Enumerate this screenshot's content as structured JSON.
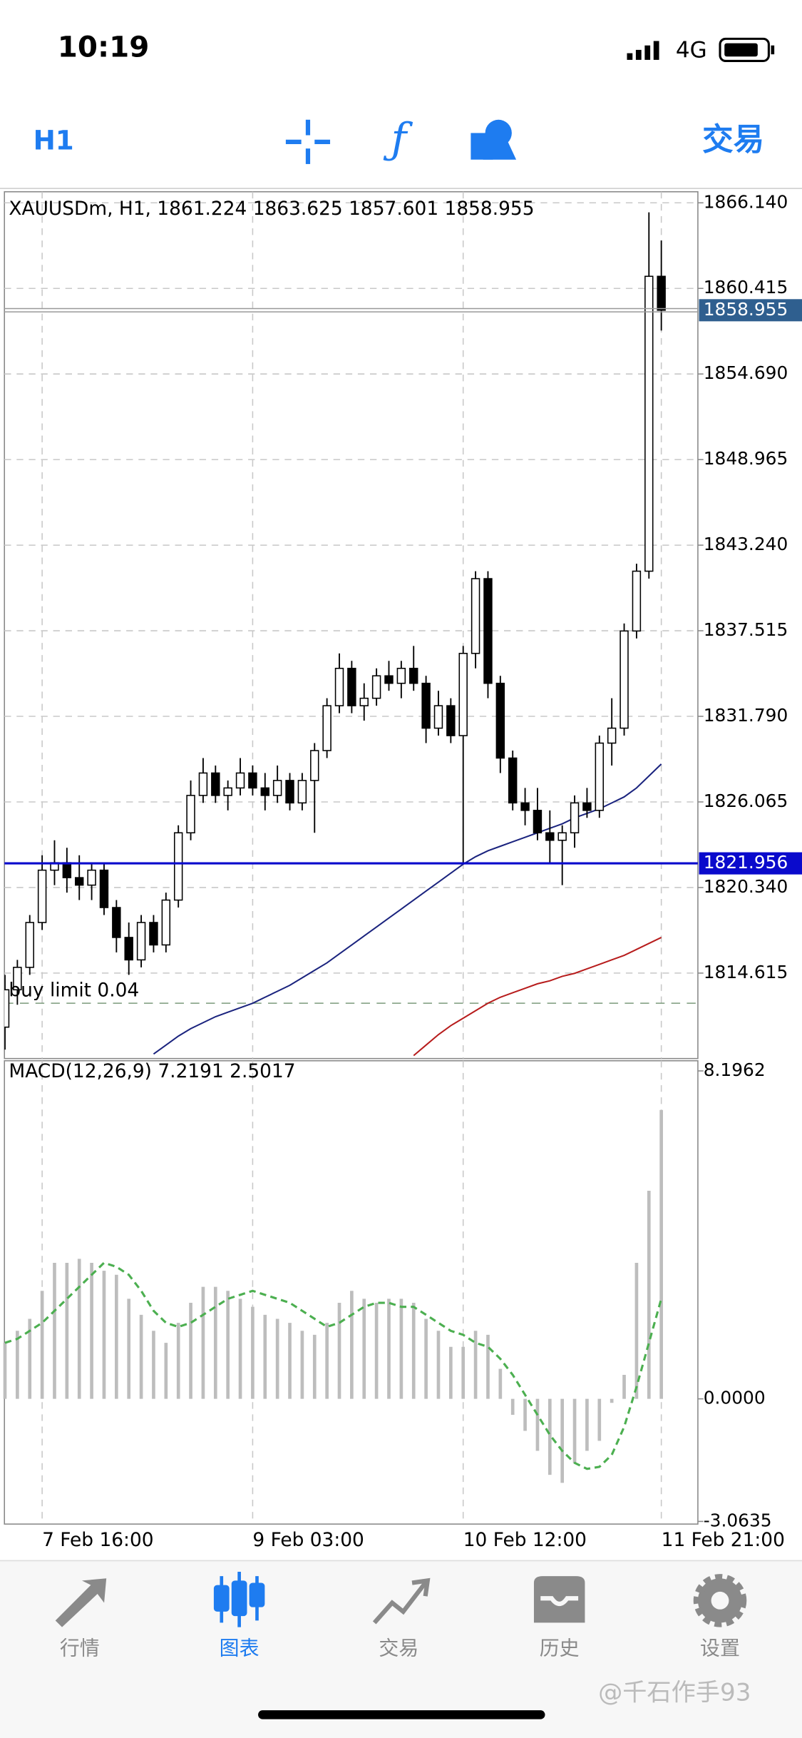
{
  "status_bar": {
    "time": "10:19",
    "network": "4G"
  },
  "toolbar": {
    "period": "H1",
    "trade": "交易"
  },
  "chart_data": [
    {
      "type": "candlestick",
      "title": "XAUUSDm, H1, 1861.224 1863.625 1857.601 1858.955",
      "categories": [
        null,
        null,
        null,
        "7 Feb 16:00",
        null,
        null,
        null,
        null,
        null,
        null,
        null,
        null,
        null,
        null,
        null,
        null,
        null,
        null,
        null,
        null,
        "9 Feb 03:00",
        null,
        null,
        null,
        null,
        null,
        null,
        null,
        null,
        null,
        null,
        null,
        null,
        null,
        null,
        null,
        null,
        "10 Feb 12:00",
        null,
        null,
        null,
        null,
        null,
        null,
        null,
        null,
        null,
        null,
        null,
        null,
        null,
        null,
        null,
        "11 Feb 21:00"
      ],
      "open": [
        1811.0,
        1813.5,
        1815.0,
        1818.0,
        1821.5,
        1822.0,
        1821.0,
        1820.5,
        1821.5,
        1819.0,
        1817.0,
        1815.5,
        1818.0,
        1816.5,
        1819.5,
        1824.0,
        1826.5,
        1828.0,
        1826.5,
        1827.0,
        1828.0,
        1827.0,
        1826.5,
        1827.5,
        1826.0,
        1827.5,
        1829.5,
        1832.5,
        1835.0,
        1832.5,
        1833.0,
        1834.5,
        1834.0,
        1835.0,
        1834.0,
        1831.0,
        1832.5,
        1830.5,
        1836.0,
        1841.0,
        1834.0,
        1829.0,
        1826.0,
        1825.5,
        1824.0,
        1823.5,
        1824.0,
        1826.0,
        1825.5,
        1830.0,
        1831.0,
        1837.5,
        1841.5,
        1861.224
      ],
      "high": [
        1814.5,
        1815.5,
        1818.5,
        1822.5,
        1823.5,
        1823.0,
        1822.5,
        1822.0,
        1822.0,
        1819.5,
        1818.0,
        1818.5,
        1818.5,
        1820.0,
        1824.5,
        1827.5,
        1829.0,
        1828.5,
        1827.5,
        1829.0,
        1828.5,
        1828.0,
        1828.5,
        1828.0,
        1828.0,
        1830.0,
        1833.0,
        1836.0,
        1835.5,
        1834.0,
        1835.0,
        1835.5,
        1835.5,
        1836.5,
        1834.5,
        1833.5,
        1833.0,
        1836.5,
        1841.5,
        1841.5,
        1834.5,
        1829.5,
        1827.0,
        1827.0,
        1825.5,
        1824.5,
        1826.5,
        1827.0,
        1830.5,
        1833.0,
        1838.0,
        1842.0,
        1865.5,
        1863.625
      ],
      "low": [
        1809.5,
        1812.5,
        1814.5,
        1817.5,
        1820.5,
        1820.0,
        1819.5,
        1819.5,
        1818.5,
        1816.0,
        1814.5,
        1815.0,
        1816.0,
        1816.0,
        1819.0,
        1823.5,
        1826.0,
        1826.0,
        1825.5,
        1826.5,
        1826.5,
        1825.5,
        1826.0,
        1825.5,
        1825.5,
        1824.0,
        1829.0,
        1832.0,
        1832.0,
        1831.5,
        1832.5,
        1833.5,
        1833.0,
        1833.5,
        1830.0,
        1830.5,
        1830.0,
        1822.0,
        1835.0,
        1833.0,
        1828.0,
        1825.5,
        1824.5,
        1823.5,
        1822.0,
        1820.5,
        1823.0,
        1825.0,
        1825.0,
        1828.5,
        1830.5,
        1837.0,
        1841.0,
        1857.601
      ],
      "close": [
        1813.5,
        1815.0,
        1818.0,
        1821.5,
        1822.0,
        1821.0,
        1820.5,
        1821.5,
        1819.0,
        1817.0,
        1815.5,
        1818.0,
        1816.5,
        1819.5,
        1824.0,
        1826.5,
        1828.0,
        1826.5,
        1827.0,
        1828.0,
        1827.0,
        1826.5,
        1827.5,
        1826.0,
        1827.5,
        1829.5,
        1832.5,
        1835.0,
        1832.5,
        1833.0,
        1834.5,
        1834.0,
        1835.0,
        1834.0,
        1831.0,
        1832.5,
        1830.5,
        1836.0,
        1841.0,
        1834.0,
        1829.0,
        1826.0,
        1825.5,
        1824.0,
        1823.5,
        1824.0,
        1826.0,
        1825.5,
        1830.0,
        1831.0,
        1837.5,
        1841.5,
        1861.224,
        1858.955
      ],
      "up_color": "#ffffff",
      "down_color": "#000000",
      "lines": [
        {
          "color": "#1a237e",
          "values": [
            null,
            null,
            null,
            null,
            null,
            null,
            null,
            null,
            null,
            null,
            null,
            null,
            1809.2,
            1809.8,
            1810.4,
            1810.9,
            1811.3,
            1811.7,
            1812.0,
            1812.3,
            1812.6,
            1813.0,
            1813.4,
            1813.8,
            1814.3,
            1814.8,
            1815.3,
            1815.9,
            1816.5,
            1817.1,
            1817.7,
            1818.3,
            1818.9,
            1819.5,
            1820.1,
            1820.7,
            1821.3,
            1821.9,
            1822.4,
            1822.8,
            1823.1,
            1823.4,
            1823.7,
            1824.0,
            1824.3,
            1824.6,
            1825.0,
            1825.3,
            1825.6,
            1826.0,
            1826.4,
            1827.0,
            1827.8,
            1828.6
          ]
        },
        {
          "color": "#b71c1c",
          "values": [
            null,
            null,
            null,
            null,
            null,
            null,
            null,
            null,
            null,
            null,
            null,
            null,
            null,
            null,
            null,
            null,
            null,
            null,
            null,
            null,
            null,
            null,
            null,
            null,
            null,
            null,
            null,
            null,
            null,
            null,
            null,
            null,
            null,
            1809.1,
            1809.8,
            1810.5,
            1811.1,
            1811.6,
            1812.1,
            1812.6,
            1813.0,
            1813.3,
            1813.6,
            1813.9,
            1814.1,
            1814.4,
            1814.6,
            1814.9,
            1815.2,
            1815.5,
            1815.8,
            1816.2,
            1816.6,
            1817.0
          ]
        }
      ],
      "price_marker": 1858.955,
      "price_marker_color": "#2f5f8f",
      "line_marker": 1821.956,
      "line_marker_color": "#0a0acc",
      "order": {
        "label": "buy limit 0.04",
        "price": 1812.6
      },
      "ylim": [
        1808.9,
        1866.88
      ],
      "yticks": [
        {
          "value": 1866.14,
          "label": "1866.140"
        },
        1860.415,
        {
          "value": 1854.69,
          "label": "1854.690"
        },
        1848.965,
        {
          "value": 1843.24,
          "label": "1843.240"
        },
        1837.515,
        {
          "value": 1831.79,
          "label": "1831.790"
        },
        1826.065,
        {
          "value": 1820.34,
          "label": "1820.340"
        },
        1814.615
      ],
      "grid": true
    },
    {
      "type": "macd",
      "title": "MACD(12,26,9) 7.2191 2.5017",
      "histogram": [
        1.4,
        1.7,
        2.0,
        2.7,
        3.4,
        3.4,
        3.5,
        3.4,
        3.2,
        3.1,
        2.5,
        2.1,
        1.7,
        1.4,
        1.9,
        2.4,
        2.8,
        2.8,
        2.7,
        2.5,
        2.3,
        2.1,
        2.0,
        1.9,
        1.7,
        1.6,
        1.9,
        2.4,
        2.7,
        2.5,
        2.4,
        2.5,
        2.5,
        2.4,
        2.0,
        1.7,
        1.3,
        1.3,
        1.7,
        1.6,
        0.75,
        -0.4,
        -0.8,
        -1.3,
        -1.9,
        -2.1,
        -1.6,
        -1.3,
        -1.05,
        -0.1,
        0.6,
        3.4,
        5.2,
        7.2191
      ],
      "signal": [
        1.4,
        1.5,
        1.7,
        1.9,
        2.2,
        2.5,
        2.8,
        3.1,
        3.4,
        3.3,
        3.1,
        2.7,
        2.2,
        1.9,
        1.8,
        1.9,
        2.1,
        2.3,
        2.5,
        2.6,
        2.7,
        2.6,
        2.5,
        2.4,
        2.2,
        2.0,
        1.8,
        1.9,
        2.1,
        2.3,
        2.4,
        2.4,
        2.3,
        2.3,
        2.1,
        1.9,
        1.7,
        1.6,
        1.4,
        1.3,
        1.0,
        0.6,
        0.1,
        -0.4,
        -0.9,
        -1.3,
        -1.6,
        -1.75,
        -1.7,
        -1.4,
        -0.7,
        0.3,
        1.4,
        2.5017
      ],
      "histogram_color": "#bdbdbd",
      "signal_color": "#4caf50",
      "ylim": [
        -3.13,
        8.45
      ],
      "yticks": [
        8.1962,
        {
          "value": 0,
          "label": "0.0000"
        },
        -3.0635
      ]
    }
  ],
  "tab_bar": {
    "items": [
      "行情",
      "图表",
      "交易",
      "历史",
      "设置"
    ],
    "active": 1,
    "active_color": "#1e7cf0"
  },
  "watermark": "@千石作手93"
}
